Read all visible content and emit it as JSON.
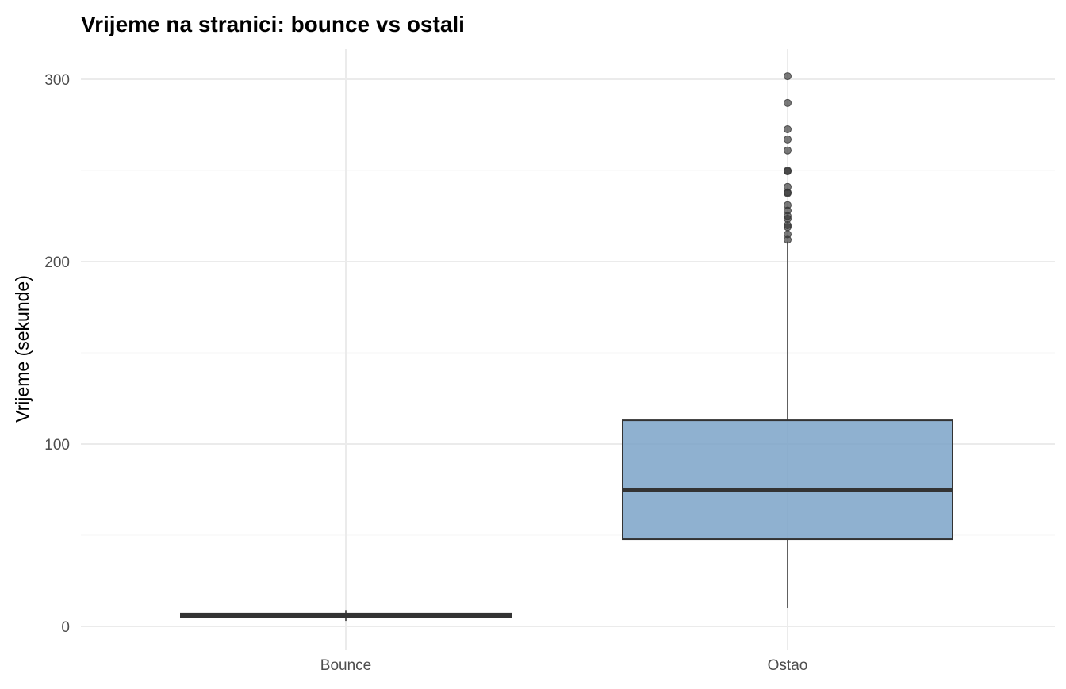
{
  "chart_data": {
    "type": "box",
    "title": "Vrijeme na stranici: bounce vs ostali",
    "xlabel": "",
    "ylabel": "Vrijeme (sekunde)",
    "ylim": [
      -3,
      318
    ],
    "yticks": [
      0,
      100,
      200,
      300
    ],
    "ytick_labels": [
      "0",
      "100",
      "200",
      "300"
    ],
    "grid": true,
    "fill_color": "#7BA3C8",
    "categories": [
      "Bounce",
      "Ostao"
    ],
    "boxes": [
      {
        "name": "Bounce",
        "whisker_low": 3,
        "q1": 4.8,
        "median": 5.8,
        "q3": 7,
        "whisker_high": 9,
        "outliers": []
      },
      {
        "name": "Ostao",
        "whisker_low": 10,
        "q1": 47.8,
        "median": 74.8,
        "q3": 113,
        "whisker_high": 211,
        "outliers": [
          301.7,
          287,
          272.6,
          267,
          261,
          250,
          249.5,
          241,
          238,
          237.5,
          231,
          228,
          225,
          223.5,
          220,
          219,
          215,
          212
        ]
      }
    ]
  }
}
